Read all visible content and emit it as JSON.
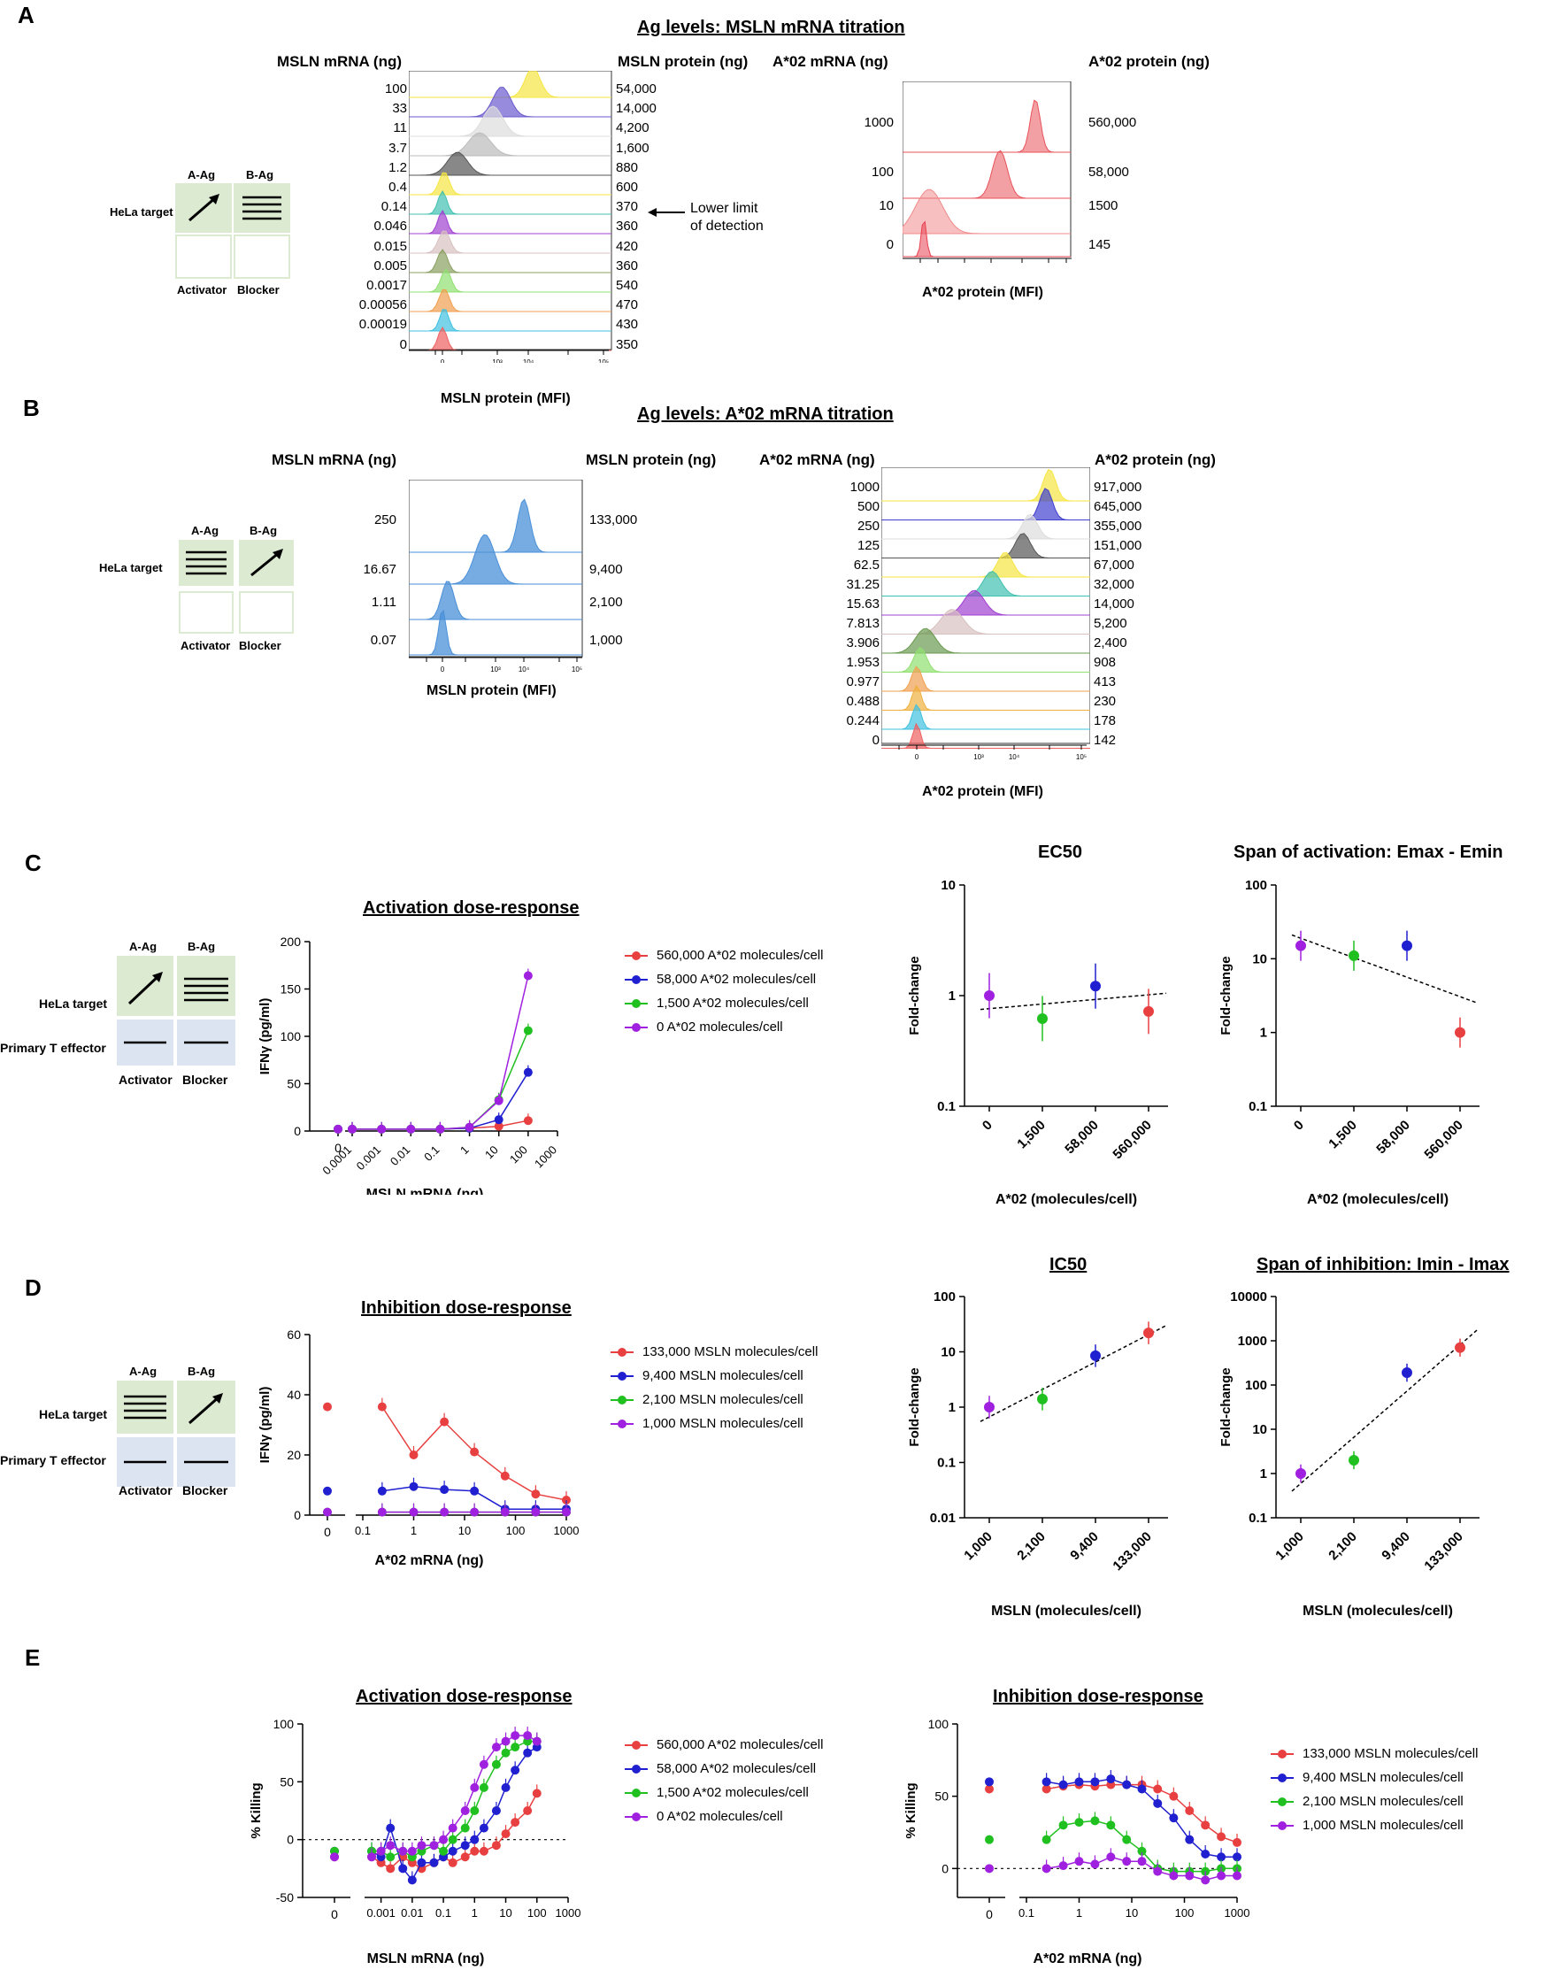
{
  "panels": {
    "A": "A",
    "B": "B",
    "C": "C",
    "D": "D",
    "E": "E"
  },
  "schematic": {
    "a_ag": "A-Ag",
    "b_ag": "B-Ag",
    "hela": "HeLa target",
    "primary": "Primary T effector",
    "activator": "Activator",
    "blocker": "Blocker"
  },
  "panelA": {
    "title": "Ag levels: MSLN mRNA titration",
    "left": {
      "col_mrna": "MSLN mRNA (ng)",
      "col_protein": "MSLN protein (ng)",
      "xlabel": "MSLN protein (MFI)",
      "mrna": [
        "100",
        "33",
        "11",
        "3.7",
        "1.2",
        "0.4",
        "0.14",
        "0.046",
        "0.015",
        "0.005",
        "0.0017",
        "0.00056",
        "0.00019",
        "0"
      ],
      "protein": [
        "54,000",
        "14,000",
        "4,200",
        "1,600",
        "880",
        "600",
        "370",
        "360",
        "420",
        "360",
        "540",
        "470",
        "430",
        "350"
      ],
      "colors": [
        "#f5e642",
        "#6a5acd",
        "#dddddd",
        "#bbbbbb",
        "#555555",
        "#f5e642",
        "#40c0b0",
        "#a040d0",
        "#d8c0c0",
        "#8aa060",
        "#90e070",
        "#f0a050",
        "#40c0e0",
        "#f06060"
      ],
      "annotation": "Lower limit\nof detection",
      "annotation_l1": "Lower limit",
      "annotation_l2": "of detection"
    },
    "right": {
      "col_mrna": "A*02 mRNA (ng)",
      "col_protein": "A*02 protein (ng)",
      "xlabel": "A*02 protein (MFI)",
      "mrna": [
        "1000",
        "100",
        "10",
        "0"
      ],
      "protein": [
        "560,000",
        "58,000",
        "1500",
        "145"
      ]
    }
  },
  "panelB": {
    "title": "Ag levels: A*02 mRNA titration",
    "left": {
      "col_mrna": "MSLN mRNA (ng)",
      "col_protein": "MSLN protein (ng)",
      "xlabel": "MSLN protein (MFI)",
      "mrna": [
        "250",
        "16.67",
        "1.11",
        "0.07"
      ],
      "protein": [
        "133,000",
        "9,400",
        "2,100",
        "1,000"
      ]
    },
    "right": {
      "col_mrna": "A*02 mRNA (ng)",
      "col_protein": "A*02 protein (ng)",
      "xlabel": "A*02 protein (MFI)",
      "mrna": [
        "1000",
        "500",
        "250",
        "125",
        "62.5",
        "31.25",
        "15.63",
        "7.813",
        "3.906",
        "1.953",
        "0.977",
        "0.488",
        "0.244",
        "0"
      ],
      "protein": [
        "917,000",
        "645,000",
        "355,000",
        "151,000",
        "67,000",
        "32,000",
        "14,000",
        "5,200",
        "2,400",
        "908",
        "413",
        "230",
        "178",
        "142"
      ],
      "colors": [
        "#f5e642",
        "#4040d0",
        "#dddddd",
        "#555555",
        "#f5e642",
        "#40c0b0",
        "#a040d0",
        "#d8c0c0",
        "#6a9a50",
        "#90e070",
        "#f0a050",
        "#f0b040",
        "#40c0e0",
        "#f06060"
      ]
    }
  },
  "panelC": {
    "title": "Activation dose-response",
    "ylabel": "IFNγ (pg/ml)",
    "xlabel": "MSLN mRNA (ng)",
    "yticks": [
      "0",
      "50",
      "100",
      "150",
      "200"
    ],
    "xticks": [
      "0",
      "0.0001",
      "0.001",
      "0.01",
      "0.1",
      "1",
      "10",
      "100",
      "1000"
    ],
    "legend": [
      "560,000 A*02 molecules/cell",
      "58,000 A*02 molecules/cell",
      "1,500 A*02 molecules/cell",
      "0 A*02 molecules/cell"
    ],
    "colors": [
      "#e84040",
      "#2020d0",
      "#20c020",
      "#a020e0"
    ],
    "ec50": {
      "title": "EC50",
      "ylabel": "Fold-change",
      "xlabel": "A*02 (molecules/cell)",
      "xcats": [
        "0",
        "1,500",
        "58,000",
        "560,000"
      ],
      "yticks": [
        "0.1",
        "1",
        "10"
      ],
      "values": [
        1.0,
        0.62,
        1.22,
        0.72
      ]
    },
    "span": {
      "title": "Span of activation: Emax - Emin",
      "ylabel": "Fold-change",
      "xlabel": "A*02 (molecules/cell)",
      "xcats": [
        "0",
        "1,500",
        "58,000",
        "560,000"
      ],
      "yticks": [
        "0.1",
        "1",
        "10",
        "100"
      ],
      "values": [
        15,
        11,
        15,
        1
      ]
    }
  },
  "panelD": {
    "title": "Inhibition dose-response",
    "ylabel": "IFNγ (pg/ml)",
    "xlabel": "A*02 mRNA (ng)",
    "yticks": [
      "0",
      "20",
      "40",
      "60"
    ],
    "xticks": [
      "0",
      "0.1",
      "1",
      "10",
      "100",
      "1000"
    ],
    "legend": [
      "133,000 MSLN molecules/cell",
      "9,400 MSLN molecules/cell",
      "2,100 MSLN molecules/cell",
      "1,000 MSLN molecules/cell"
    ],
    "colors": [
      "#e84040",
      "#2020d0",
      "#20c020",
      "#a020e0"
    ],
    "ic50": {
      "title": "IC50",
      "ylabel": "Fold-change",
      "xlabel": "MSLN (molecules/cell)",
      "xcats": [
        "1,000",
        "2,100",
        "9,400",
        "133,000"
      ],
      "yticks": [
        "0.01",
        "0.1",
        "1",
        "10",
        "100"
      ],
      "values": [
        1,
        1.4,
        8.5,
        22
      ]
    },
    "span": {
      "title": "Span of inhibition: Imin - Imax",
      "ylabel": "Fold-change",
      "xlabel": "MSLN (molecules/cell)",
      "xcats": [
        "1,000",
        "2,100",
        "9,400",
        "133,000"
      ],
      "yticks": [
        "0.1",
        "1",
        "10",
        "100",
        "1000",
        "10000"
      ],
      "values": [
        1,
        2,
        190,
        700
      ]
    }
  },
  "panelE": {
    "act": {
      "title": "Activation dose-response",
      "ylabel": "% Killing",
      "xlabel": "MSLN mRNA (ng)",
      "yticks": [
        "-50",
        "0",
        "50",
        "100"
      ],
      "xticks": [
        "0",
        "0.001",
        "0.01",
        "0.1",
        "1",
        "10",
        "100",
        "1000"
      ],
      "legend": [
        "560,000 A*02 molecules/cell",
        "58,000 A*02 molecules/cell",
        "1,500 A*02 molecules/cell",
        "0 A*02 molecules/cell"
      ]
    },
    "inh": {
      "title": "Inhibition dose-response",
      "ylabel": "% Killing",
      "xlabel": "A*02 mRNA (ng)",
      "yticks": [
        "0",
        "50",
        "100"
      ],
      "xticks": [
        "0",
        "0.1",
        "1",
        "10",
        "100",
        "1000"
      ],
      "legend": [
        "133,000 MSLN molecules/cell",
        "9,400 MSLN molecules/cell",
        "2,100 MSLN molecules/cell",
        "1,000 MSLN molecules/cell"
      ]
    },
    "colors": [
      "#e84040",
      "#2020d0",
      "#20c020",
      "#a020e0"
    ]
  },
  "chart_data": [
    {
      "type": "line",
      "title": "Activation dose-response (IFNγ)",
      "xlabel": "MSLN mRNA (ng)",
      "ylabel": "IFNγ (pg/ml)",
      "ylim": [
        0,
        200
      ],
      "x": [
        0.0001,
        0.001,
        0.01,
        0.1,
        1,
        10,
        100
      ],
      "series": [
        {
          "name": "560,000 A*02 molecules/cell",
          "values": [
            2,
            2,
            2,
            2,
            3,
            5,
            11
          ]
        },
        {
          "name": "58,000 A*02 molecules/cell",
          "values": [
            2,
            2,
            2,
            2,
            3,
            12,
            62
          ]
        },
        {
          "name": "1,500 A*02 molecules/cell",
          "values": [
            2,
            2,
            2,
            2,
            4,
            33,
            106
          ]
        },
        {
          "name": "0 A*02 molecules/cell",
          "values": [
            2,
            2,
            2,
            2,
            4,
            32,
            164
          ]
        }
      ]
    },
    {
      "type": "scatter",
      "title": "EC50",
      "xlabel": "A*02 (molecules/cell)",
      "ylabel": "Fold-change",
      "categories": [
        "0",
        "1,500",
        "58,000",
        "560,000"
      ],
      "values": [
        1.0,
        0.62,
        1.22,
        0.72
      ],
      "ylim": [
        0.1,
        10
      ]
    },
    {
      "type": "scatter",
      "title": "Span of activation: Emax - Emin",
      "xlabel": "A*02 (molecules/cell)",
      "ylabel": "Fold-change",
      "categories": [
        "0",
        "1,500",
        "58,000",
        "560,000"
      ],
      "values": [
        15,
        11,
        15,
        1
      ],
      "ylim": [
        0.1,
        100
      ]
    },
    {
      "type": "line",
      "title": "Inhibition dose-response (IFNγ)",
      "xlabel": "A*02 mRNA (ng)",
      "ylabel": "IFNγ (pg/ml)",
      "ylim": [
        0,
        60
      ],
      "x": [
        0.24,
        1,
        4,
        15.6,
        62.5,
        250,
        1000
      ],
      "series": [
        {
          "name": "133,000 MSLN molecules/cell",
          "values": [
            36,
            20,
            31,
            21,
            13,
            7,
            5
          ]
        },
        {
          "name": "9,400 MSLN molecules/cell",
          "values": [
            8,
            9.5,
            8.5,
            8,
            2,
            2,
            2
          ]
        },
        {
          "name": "2,100 MSLN molecules/cell",
          "values": [
            1,
            1,
            1,
            1,
            1,
            1,
            1
          ]
        },
        {
          "name": "1,000 MSLN molecules/cell",
          "values": [
            1,
            1,
            1,
            1,
            1,
            1,
            1
          ]
        }
      ]
    },
    {
      "type": "scatter",
      "title": "IC50",
      "xlabel": "MSLN (molecules/cell)",
      "ylabel": "Fold-change",
      "categories": [
        "1,000",
        "2,100",
        "9,400",
        "133,000"
      ],
      "values": [
        1,
        1.4,
        8.5,
        22
      ],
      "ylim": [
        0.01,
        100
      ]
    },
    {
      "type": "scatter",
      "title": "Span of inhibition: Imin - Imax",
      "xlabel": "MSLN (molecules/cell)",
      "ylabel": "Fold-change",
      "categories": [
        "1,000",
        "2,100",
        "9,400",
        "133,000"
      ],
      "values": [
        1,
        2,
        190,
        700
      ],
      "ylim": [
        0.1,
        10000
      ]
    },
    {
      "type": "line",
      "title": "Activation dose-response (% Killing)",
      "xlabel": "MSLN mRNA (ng)",
      "ylabel": "% Killing",
      "ylim": [
        -50,
        100
      ],
      "x": [
        0.0005,
        0.001,
        0.002,
        0.005,
        0.01,
        0.02,
        0.05,
        0.1,
        0.2,
        0.5,
        1,
        2,
        5,
        10,
        20,
        50,
        100
      ],
      "series": [
        {
          "name": "560,000 A*02 molecules/cell",
          "values": [
            -15,
            -20,
            -25,
            -15,
            -20,
            -25,
            -20,
            -15,
            -20,
            -15,
            -10,
            -10,
            -5,
            5,
            15,
            25,
            40
          ]
        },
        {
          "name": "58,000 A*02 molecules/cell",
          "values": [
            -10,
            -15,
            10,
            -25,
            -35,
            -20,
            -20,
            -15,
            -10,
            -5,
            0,
            10,
            25,
            45,
            60,
            75,
            80
          ]
        },
        {
          "name": "1,500 A*02 molecules/cell",
          "values": [
            -10,
            -10,
            -15,
            -10,
            -15,
            -10,
            -5,
            -10,
            0,
            10,
            25,
            45,
            65,
            75,
            80,
            85,
            85
          ]
        },
        {
          "name": "0 A*02 molecules/cell",
          "values": [
            -15,
            -10,
            -5,
            -10,
            -10,
            -5,
            -5,
            0,
            10,
            25,
            45,
            65,
            80,
            85,
            90,
            90,
            85
          ]
        }
      ]
    },
    {
      "type": "line",
      "title": "Inhibition dose-response (% Killing)",
      "xlabel": "A*02 mRNA (ng)",
      "ylabel": "% Killing",
      "ylim": [
        -20,
        100
      ],
      "x": [
        0.24,
        0.5,
        1,
        2,
        4,
        8,
        15.6,
        31,
        62.5,
        125,
        250,
        500,
        1000
      ],
      "series": [
        {
          "name": "133,000 MSLN molecules/cell",
          "values": [
            55,
            57,
            58,
            57,
            58,
            58,
            58,
            55,
            50,
            40,
            30,
            22,
            18
          ]
        },
        {
          "name": "9,400 MSLN molecules/cell",
          "values": [
            60,
            58,
            60,
            60,
            62,
            58,
            55,
            45,
            35,
            20,
            10,
            8,
            8
          ]
        },
        {
          "name": "2,100 MSLN molecules/cell",
          "values": [
            20,
            30,
            32,
            33,
            30,
            20,
            12,
            0,
            -2,
            -2,
            -2,
            0,
            0
          ]
        },
        {
          "name": "1,000 MSLN molecules/cell",
          "values": [
            0,
            2,
            5,
            3,
            8,
            5,
            5,
            -2,
            -5,
            -5,
            -8,
            -5,
            -5
          ]
        }
      ]
    }
  ]
}
